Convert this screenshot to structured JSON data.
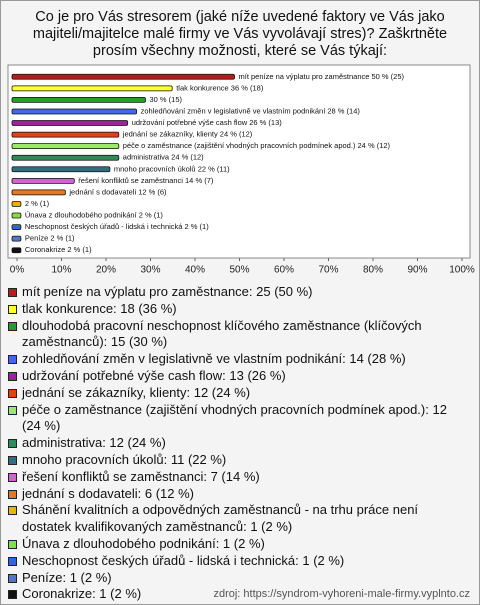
{
  "chart_data": {
    "type": "bar",
    "orientation": "horizontal",
    "title": "Co je pro Vás stresorem (jaké níže uvedené faktory ve Vás jako majiteli/majitelce malé firmy ve Vás vyvolávají stres)? Zaškrtněte prosím všechny možnosti, které se Vás týkají:",
    "categories": [
      "mít peníze na výplatu pro zaměstnance",
      "tlak konkurence",
      "dlouhodobá pracovní neschopnost klíčového zaměstnance (klíčových zaměstnanců)",
      "zohledňování změn v legislativně ve vlastním podnikání",
      "udržování potřebné výše cash flow",
      "jednání se zákazníky, klienty",
      "péče o zaměstnance (zajištění vhodných pracovních podmínek apod.)",
      "administrativa",
      "mnoho pracovních úkolů",
      "řešení konfliktů se zaměstnanci",
      "jednání s dodavateli",
      "Shánění kvalitních a odpovědných zaměstnanců - na trhu práce není dostatek kvalifikovaných zaměstnanců",
      "Únava z dlouhodobého podnikání",
      "Neschopnost českých úřadů - lidská i technická",
      "Peníze",
      "Coronakrize"
    ],
    "values": [
      50,
      36,
      30,
      28,
      26,
      24,
      24,
      24,
      22,
      14,
      12,
      2,
      2,
      2,
      2,
      2
    ],
    "counts": [
      25,
      18,
      15,
      14,
      13,
      12,
      12,
      12,
      11,
      7,
      6,
      1,
      1,
      1,
      1,
      1
    ],
    "value_labels": [
      "mít peníze na výplatu pro zaměstnance 50 % (25)",
      "tlak konkurence 36 % (18)",
      "30 % (15)",
      "zohledňování změn v legislativně ve vlastním podnikání 28 % (14)",
      "udržování potřebné výše cash flow 26 % (13)",
      "jednání se zákazníky, klienty 24 % (12)",
      "péče o zaměstnance (zajištění vhodných pracovních podmínek apod.) 24 % (12)",
      "administrativa 24 % (12)",
      "mnoho pracovních úkolů 22 % (11)",
      "řešení konfliktů se zaměstnanci 14 % (7)",
      "jednání s dodavateli 12 % (6)",
      "2 % (1)",
      "Únava z dlouhodobého podnikání 2 % (1)",
      "Neschopnost českých úřadů - lidská i technická 2 % (1)",
      "Peníze 2 % (1)",
      "Coronakrize 2 % (1)"
    ],
    "legend_labels": [
      "mít peníze na výplatu pro zaměstnance: 25 (50 %)",
      "tlak konkurence: 18 (36 %)",
      "dlouhodobá pracovní neschopnost klíčového zaměstnance (klíčových zaměstnanců): 15 (30 %)",
      "zohledňování změn v legislativně ve vlastním podnikání: 14 (28 %)",
      "udržování potřebné výše cash flow: 13 (26 %)",
      "jednání se zákazníky, klienty: 12 (24 %)",
      "péče o zaměstnance (zajištění vhodných pracovních podmínek apod.): 12 (24 %)",
      "administrativa: 12 (24 %)",
      "mnoho pracovních úkolů: 11 (22 %)",
      "řešení konfliktů se zaměstnanci: 7 (14 %)",
      "jednání s dodavateli: 6 (12 %)",
      " Shánění kvalitních a odpovědných zaměstnanců - na trhu práce není dostatek kvalifikovaných zaměstnanců: 1 (2 %)",
      "Únava z dlouhodobého podnikání: 1 (2 %)",
      "Neschopnost českých úřadů - lidská i technická: 1 (2 %)",
      "Peníze: 1 (2 %)",
      "Coronakrize: 1 (2 %)"
    ],
    "colors": [
      "#b01e1e",
      "#ffff33",
      "#22a022",
      "#4169e1",
      "#a020a0",
      "#e0401e",
      "#9ce86a",
      "#2e8b57",
      "#2f6f7f",
      "#cc66cc",
      "#e87820",
      "#f0b000",
      "#88dd44",
      "#3366cc",
      "#5577bb",
      "#111111"
    ],
    "xlim": [
      0,
      100
    ],
    "xticks": [
      {
        "value": 0,
        "label": "0%"
      },
      {
        "value": 10,
        "label": "10%"
      },
      {
        "value": 20,
        "label": "20%"
      },
      {
        "value": 30,
        "label": "30%"
      },
      {
        "value": 40,
        "label": "40%"
      },
      {
        "value": 50,
        "label": "50%"
      },
      {
        "value": 60,
        "label": "60%"
      },
      {
        "value": 70,
        "label": "70%"
      },
      {
        "value": 80,
        "label": "80%"
      },
      {
        "value": 90,
        "label": "90%"
      },
      {
        "value": 100,
        "label": "100%"
      }
    ],
    "source": "zdroj: https://syndrom-vyhoreni-male-firmy.vyplnto.cz"
  }
}
